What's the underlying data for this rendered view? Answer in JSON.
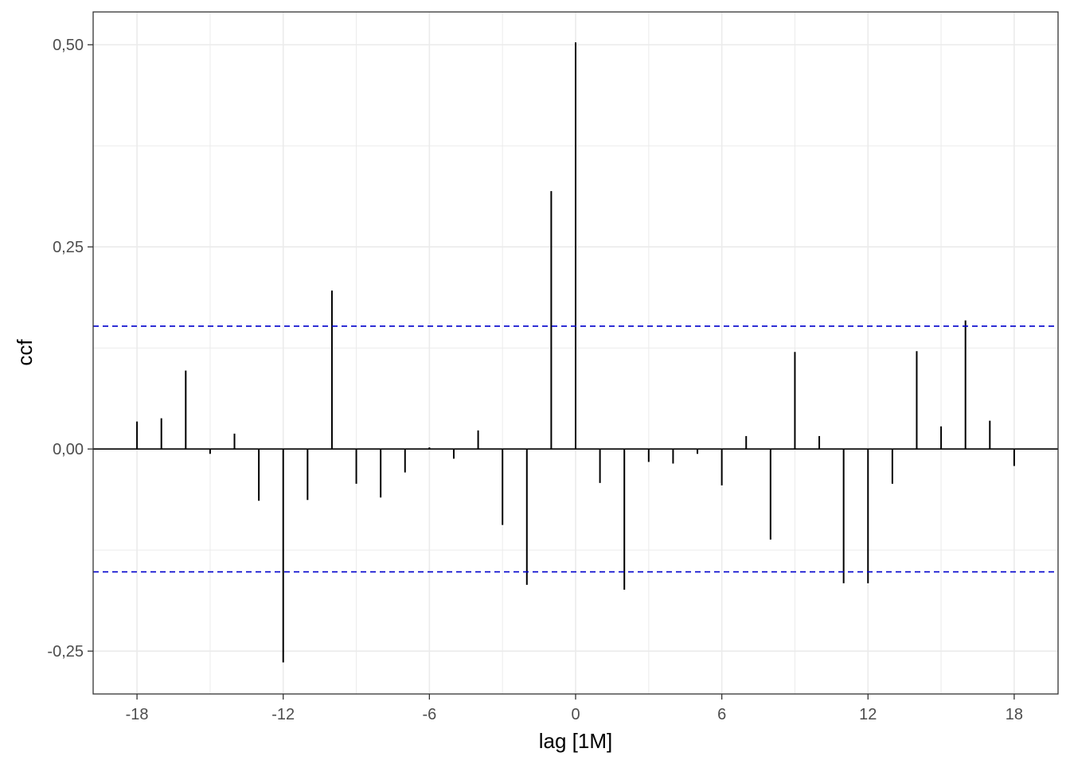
{
  "chart_data": {
    "type": "bar",
    "title": "",
    "xlabel": "lag [1M]",
    "ylabel": "ccf",
    "xlim": [
      -19.8,
      19.8
    ],
    "ylim": [
      -0.303,
      0.5406
    ],
    "x_ticks": [
      -18,
      -12,
      -6,
      0,
      6,
      12,
      18
    ],
    "x_tick_labels": [
      "-18",
      "-12",
      "-6",
      "0",
      "6",
      "12",
      "18"
    ],
    "y_ticks": [
      -0.25,
      0.0,
      0.25,
      0.5
    ],
    "y_tick_labels": [
      "-0,25",
      "0,00",
      "0,25",
      "0,50"
    ],
    "grid": true,
    "confidence_bounds": [
      0.152,
      -0.152
    ],
    "confidence_color": "#0000cc",
    "bar_color": "#000000",
    "lags": [
      -18,
      -17,
      -16,
      -15,
      -14,
      -13,
      -12,
      -11,
      -10,
      -9,
      -8,
      -7,
      -6,
      -5,
      -4,
      -3,
      -2,
      -1,
      0,
      1,
      2,
      3,
      4,
      5,
      6,
      7,
      8,
      9,
      10,
      11,
      12,
      13,
      14,
      15,
      16,
      17,
      18
    ],
    "values": [
      0.034,
      0.038,
      0.097,
      -0.006,
      0.019,
      -0.064,
      -0.264,
      -0.063,
      0.196,
      -0.043,
      -0.06,
      -0.029,
      0.002,
      -0.012,
      0.023,
      -0.094,
      -0.168,
      0.319,
      0.503,
      -0.042,
      -0.174,
      -0.016,
      -0.018,
      -0.006,
      -0.045,
      0.016,
      -0.112,
      0.12,
      0.016,
      -0.166,
      -0.166,
      -0.043,
      0.121,
      0.028,
      0.159,
      0.035,
      -0.021
    ]
  }
}
